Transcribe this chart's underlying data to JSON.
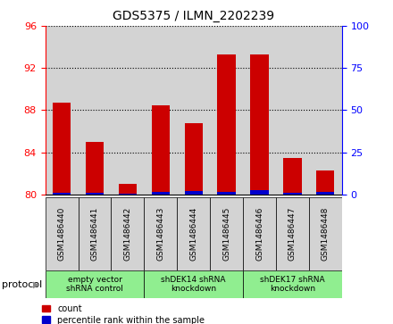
{
  "title": "GDS5375 / ILMN_2202239",
  "samples": [
    "GSM1486440",
    "GSM1486441",
    "GSM1486442",
    "GSM1486443",
    "GSM1486444",
    "GSM1486445",
    "GSM1486446",
    "GSM1486447",
    "GSM1486448"
  ],
  "count_values": [
    88.7,
    85.0,
    81.0,
    88.5,
    86.8,
    93.3,
    93.3,
    83.5,
    82.3
  ],
  "percentile_values": [
    0.8,
    1.0,
    0.5,
    1.5,
    2.0,
    1.5,
    2.5,
    1.0,
    1.5
  ],
  "y_min": 80,
  "y_max": 96,
  "y_ticks": [
    80,
    84,
    88,
    92,
    96
  ],
  "y2_ticks": [
    0,
    25,
    50,
    75,
    100
  ],
  "protocol_groups": [
    {
      "label": "empty vector\nshRNA control",
      "start": 0,
      "end": 3
    },
    {
      "label": "shDEK14 shRNA\nknockdown",
      "start": 3,
      "end": 6
    },
    {
      "label": "shDEK17 shRNA\nknockdown",
      "start": 6,
      "end": 9
    }
  ],
  "bar_color_red": "#cc0000",
  "bar_color_blue": "#0000cc",
  "group_bg_color": "#90ee90",
  "sample_bg_color": "#d3d3d3",
  "white_bg": "#ffffff",
  "protocol_label": "protocol",
  "legend_count": "count",
  "legend_percentile": "percentile rank within the sample",
  "bar_width": 0.55
}
